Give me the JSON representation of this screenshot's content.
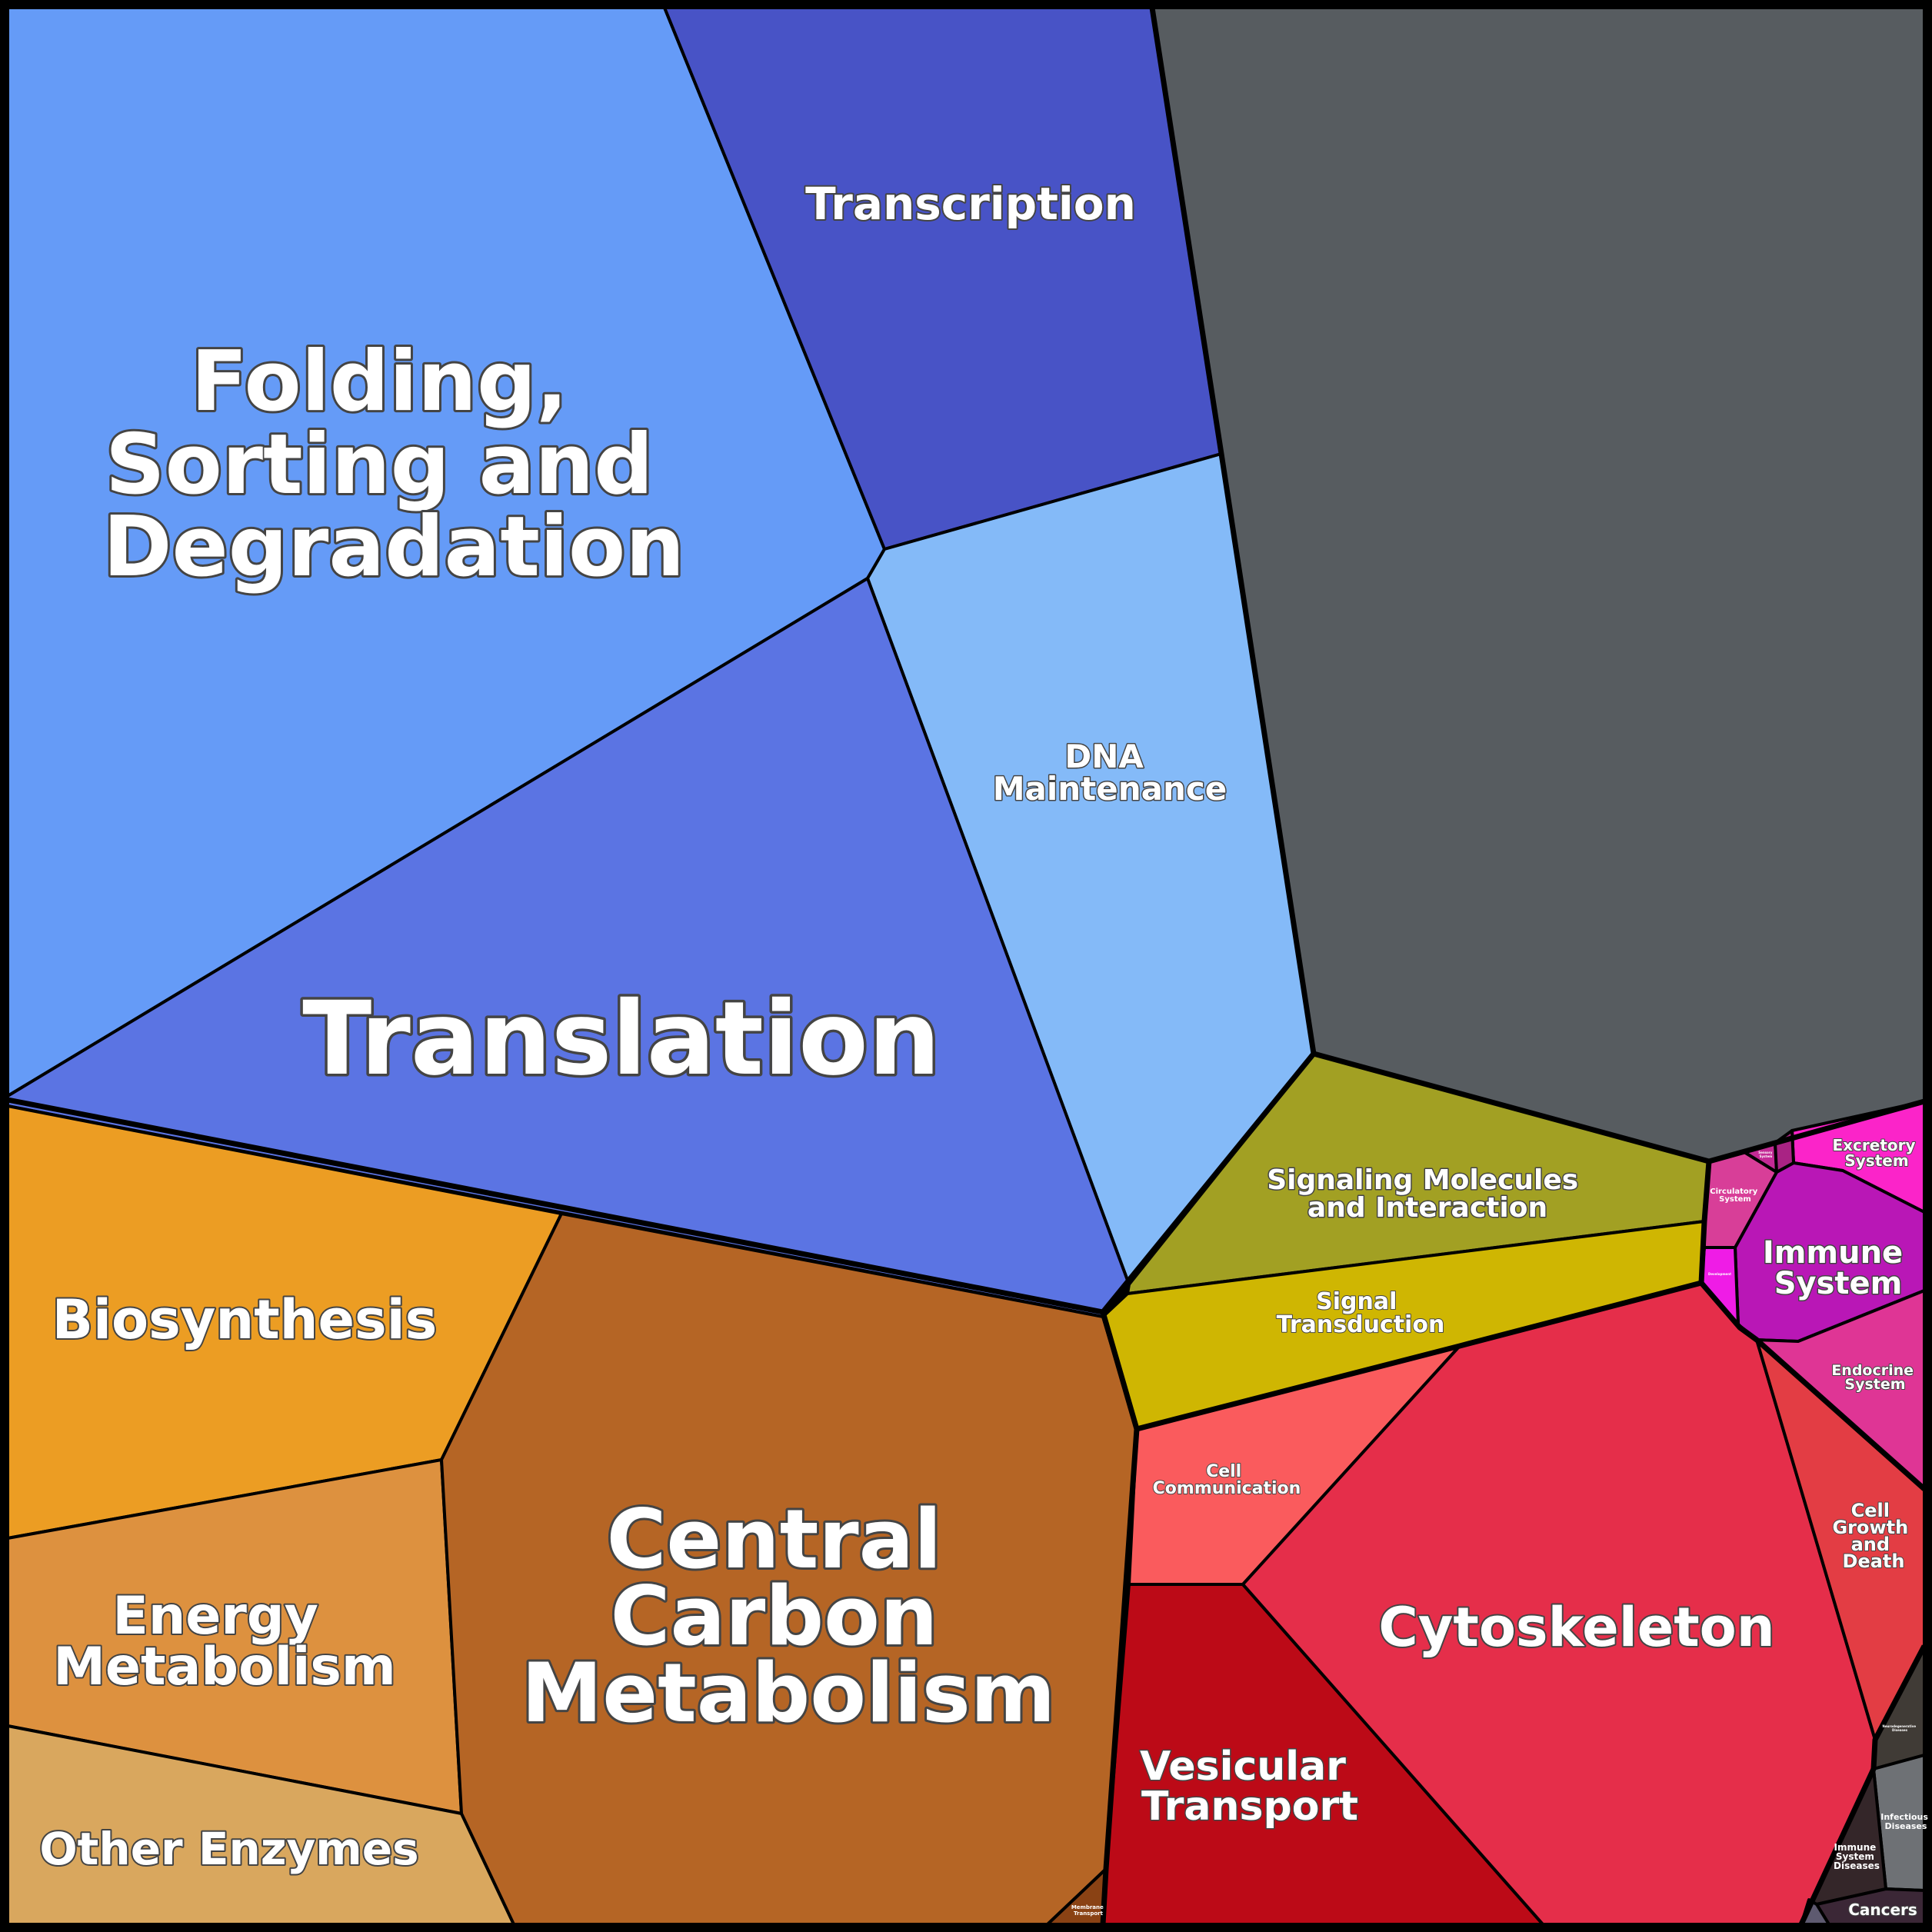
{
  "diagram": {
    "type": "voronoi-treemap",
    "cells": {
      "folding": {
        "label_lines": [
          "Folding,",
          "Sorting and",
          "Degradation"
        ],
        "color": "#659BF7"
      },
      "transcription": {
        "label_lines": [
          "Transcription"
        ],
        "color": "#4853C6"
      },
      "dna": {
        "label_lines": [
          "DNA",
          "Maintenance"
        ],
        "color": "#84BAF8"
      },
      "translation": {
        "label_lines": [
          "Translation"
        ],
        "color": "#5B74E3"
      },
      "unclassified": {
        "label_lines": [],
        "color": "#575C60"
      },
      "biosynthesis": {
        "label_lines": [
          "Biosynthesis"
        ],
        "color": "#EC9D23"
      },
      "energy": {
        "label_lines": [
          "Energy",
          "Metabolism"
        ],
        "color": "#DD913F"
      },
      "other_enzymes": {
        "label_lines": [
          "Other Enzymes"
        ],
        "color": "#D9A75E"
      },
      "central_carbon": {
        "label_lines": [
          "Central",
          "Carbon",
          "Metabolism"
        ],
        "color": "#B56525"
      },
      "membrane_transport": {
        "label_lines": [
          "Membrane",
          "Transport"
        ],
        "color": "#8A4214"
      },
      "signaling_molecules": {
        "label_lines": [
          "Signaling Molecules",
          "and Interaction"
        ],
        "color": "#A2A023"
      },
      "signal_transduction": {
        "label_lines": [
          "Signal",
          "Transduction"
        ],
        "color": "#CFB602"
      },
      "cell_communication": {
        "label_lines": [
          "Cell",
          "Communication"
        ],
        "color": "#FA5B5D"
      },
      "vesicular": {
        "label_lines": [
          "Vesicular",
          "Transport"
        ],
        "color": "#BC0A17"
      },
      "cytoskeleton": {
        "label_lines": [
          "Cytoskeleton"
        ],
        "color": "#E52E4A"
      },
      "cell_growth": {
        "label_lines": [
          "Cell",
          "Growth",
          "and",
          "Death"
        ],
        "color": "#E33D44"
      },
      "excretory": {
        "label_lines": [
          "Excretory",
          "System"
        ],
        "color": "#FB24C9"
      },
      "immune_system": {
        "label_lines": [
          "Immune",
          "System"
        ],
        "color": "#B917B6"
      },
      "endocrine": {
        "label_lines": [
          "Endocrine",
          "System"
        ],
        "color": "#DF3595"
      },
      "circulatory": {
        "label_lines": [
          "Circulatory",
          "System"
        ],
        "color": "#D83E98"
      },
      "development": {
        "label_lines": [
          "Development"
        ],
        "color": "#EF1CE6"
      },
      "sensory": {
        "label_lines": [
          "Sensory",
          "System"
        ],
        "color": "#C32A95"
      },
      "nervous": {
        "label_lines": [],
        "color": "#A92384"
      },
      "neurodegenerative": {
        "label_lines": [
          "Neurodegenerative",
          "Diseases"
        ],
        "color": "#403B36"
      },
      "infectious": {
        "label_lines": [
          "Infectious",
          "Diseases"
        ],
        "color": "#6E7175"
      },
      "immune_diseases": {
        "label_lines": [
          "Immune",
          "System",
          "Diseases"
        ],
        "color": "#342629"
      },
      "cancers": {
        "label_lines": [
          "Cancers"
        ],
        "color": "#3B2736"
      },
      "other_diseases": {
        "label_lines": [],
        "color": "#5E5A70"
      }
    }
  }
}
